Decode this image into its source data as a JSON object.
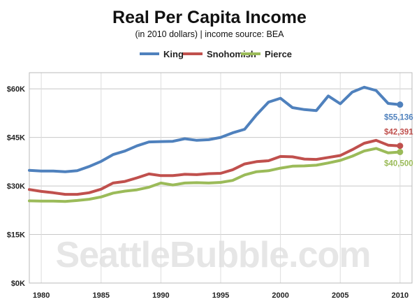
{
  "chart_data": {
    "type": "line",
    "title": "Real Per Capita Income",
    "subtitle": "(in 2010 dollars) | income source: BEA",
    "watermark": "SeattleBubble.com",
    "x": [
      1979,
      1980,
      1981,
      1982,
      1983,
      1984,
      1985,
      1986,
      1987,
      1988,
      1989,
      1990,
      1991,
      1992,
      1993,
      1994,
      1995,
      1996,
      1997,
      1998,
      1999,
      2000,
      2001,
      2002,
      2003,
      2004,
      2005,
      2006,
      2007,
      2008,
      2009,
      2010
    ],
    "x_ticks": [
      1980,
      1985,
      1990,
      1995,
      2000,
      2005,
      2010
    ],
    "xlim": [
      1979,
      2011
    ],
    "ylim": [
      0,
      65000
    ],
    "y_ticks": [
      0,
      15000,
      30000,
      45000,
      60000
    ],
    "y_tick_labels": [
      "$0K",
      "$15K",
      "$30K",
      "$45K",
      "$60K"
    ],
    "grid": true,
    "legend_position": "top",
    "series": [
      {
        "name": "King",
        "color": "#4f81bd",
        "end_label": "$55,136",
        "values": [
          34800,
          34600,
          34600,
          34400,
          34700,
          36000,
          37600,
          39700,
          40800,
          42400,
          43600,
          43700,
          43800,
          44600,
          44100,
          44300,
          45000,
          46400,
          47500,
          52000,
          55900,
          57100,
          54200,
          53600,
          53300,
          57800,
          55400,
          59000,
          60500,
          59500,
          55500,
          55136
        ]
      },
      {
        "name": "Snohomish",
        "color": "#c0504d",
        "end_label": "$42,391",
        "values": [
          28900,
          28300,
          27900,
          27400,
          27400,
          27900,
          29000,
          30900,
          31400,
          32500,
          33700,
          33200,
          33200,
          33600,
          33500,
          33800,
          33900,
          35000,
          36800,
          37500,
          37800,
          39100,
          39000,
          38300,
          38200,
          38800,
          39400,
          41200,
          43200,
          44100,
          42600,
          42391
        ]
      },
      {
        "name": "Pierce",
        "color": "#9bbb59",
        "end_label": "$40,500",
        "values": [
          25400,
          25300,
          25300,
          25200,
          25500,
          25900,
          26600,
          27800,
          28400,
          28800,
          29600,
          30900,
          30300,
          30900,
          31000,
          30900,
          31100,
          31700,
          33400,
          34400,
          34700,
          35500,
          36100,
          36200,
          36400,
          37100,
          37900,
          39200,
          40800,
          41600,
          40200,
          40500
        ]
      }
    ]
  }
}
